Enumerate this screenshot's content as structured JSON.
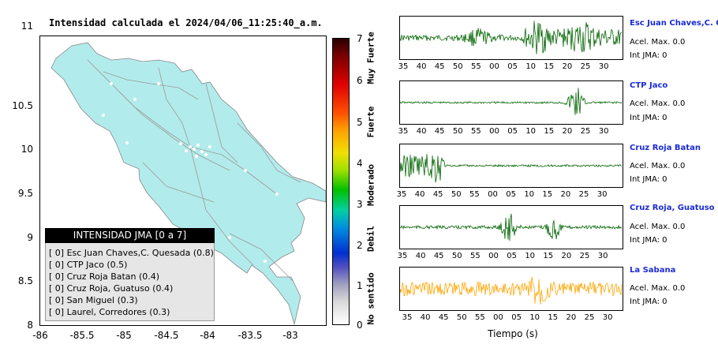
{
  "title": "Intensidad calculada el 2024/04/06_11:25:40_a.m.",
  "map": {
    "y_ticks": [
      "11",
      "10.5",
      "10",
      "9.5",
      "9",
      "8.5",
      "8"
    ],
    "x_ticks": [
      "-86",
      "-85.5",
      "-85",
      "-84.5",
      "-84",
      "-83.5",
      "-83"
    ],
    "land_color": "#b2ebeb"
  },
  "legend": {
    "header": "INTENSIDAD JMA [0 a 7]",
    "rows": [
      "[ 0]  Esc Juan Chaves,C. Quesada (0.8)",
      "[ 0]  CTP Jaco (0.5)",
      "[ 0]  Cruz Roja Batan (0.4)",
      "[ 0]  Cruz Roja, Guatuso (0.4)",
      "[ 0]  San Miguel (0.3)",
      "[ 0]  Laurel, Corredores (0.3)"
    ]
  },
  "colorbar": {
    "ticks": [
      "7",
      "6",
      "5",
      "4",
      "3",
      "2",
      "1",
      "0"
    ],
    "labels": [
      "Muy Fuerte",
      "Fuerte",
      "Moderado",
      "Debil",
      "No sentido"
    ]
  },
  "stations": [
    {
      "name": "Esc Juan Chaves,C. Qu",
      "acel": "Acel. Max. 0.0",
      "int": "Int JMA: 0",
      "color": "#006400",
      "ticks": [
        "35",
        "40",
        "45",
        "50",
        "55",
        "00",
        "05",
        "10",
        "15",
        "20",
        "25",
        "30"
      ]
    },
    {
      "name": "CTP Jaco",
      "acel": "Acel. Max. 0.0",
      "int": "Int JMA: 0",
      "color": "#006400",
      "ticks": [
        "35",
        "40",
        "45",
        "50",
        "55",
        "00",
        "05",
        "10",
        "15",
        "20",
        "25",
        "30"
      ]
    },
    {
      "name": "Cruz Roja Batan",
      "acel": "Acel. Max. 0.0",
      "int": "Int JMA: 0",
      "color": "#006400",
      "ticks": [
        "35",
        "40",
        "45",
        "50",
        "55",
        "00",
        "05",
        "10",
        "15",
        "20",
        "25",
        "30"
      ]
    },
    {
      "name": "Cruz Roja, Guatuso",
      "acel": "Acel. Max. 0.0",
      "int": "Int JMA: 0",
      "color": "#006400",
      "ticks": [
        "35",
        "40",
        "45",
        "50",
        "55",
        "00",
        "05",
        "10",
        "15",
        "20",
        "25",
        "30"
      ]
    },
    {
      "name": "La Sabana",
      "acel": "Acel. Max. 0.0",
      "int": "Int JMA: 0",
      "color": "#ffa500",
      "ticks": [
        "35",
        "40",
        "45",
        "50",
        "55",
        "00",
        "05",
        "10",
        "15",
        "20",
        "25",
        "30"
      ]
    }
  ],
  "time_axis_label": "Tiempo (s)"
}
